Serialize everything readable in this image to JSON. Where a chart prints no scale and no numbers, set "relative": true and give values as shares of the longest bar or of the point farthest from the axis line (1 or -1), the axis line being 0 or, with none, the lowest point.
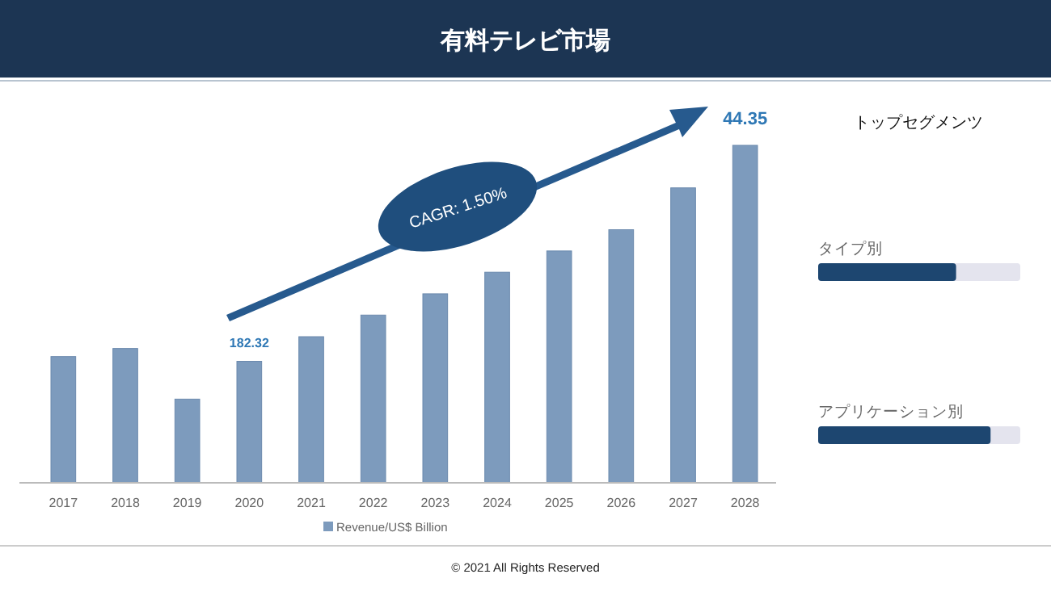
{
  "chart_data": [
    {
      "type": "bar",
      "title": "有料テレビ市場",
      "categories": [
        "2017",
        "2018",
        "2019",
        "2020",
        "2021",
        "2022",
        "2023",
        "2024",
        "2025",
        "2026",
        "2027",
        "2028"
      ],
      "relative": true,
      "legend": "bottom",
      "series": [
        {
          "name": "Revenue/US$ Billion",
          "color": "#7d9bbd",
          "values": [
            0.374,
            0.398,
            0.248,
            0.36,
            0.433,
            0.497,
            0.56,
            0.624,
            0.687,
            0.75,
            0.874,
            1
          ]
        }
      ],
      "annotations": [
        "CAGR: 1.50%",
        {
          "text": "182.32",
          "x": "2020",
          "y": 0.36
        },
        {
          "text": "44.35",
          "x": "2028",
          "y": 1
        },
        "© 2021 All Rights Reserved"
      ]
    },
    {
      "type": "bar",
      "title": "トップセグメンツ",
      "orientation": "horizontal",
      "relative": true,
      "categories": [
        "タイプ別",
        "アプリケーション別"
      ],
      "series": [
        {
          "color": "#1d4670",
          "values": [
            0.8,
            1
          ]
        }
      ]
    }
  ]
}
